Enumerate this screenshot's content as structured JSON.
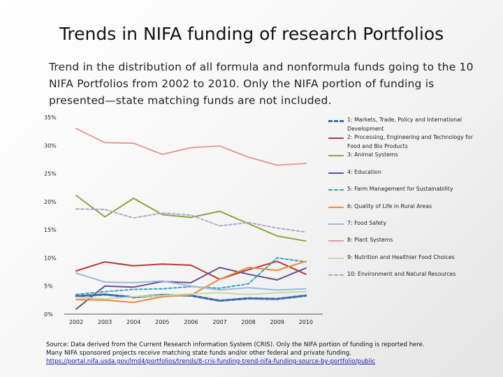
{
  "title": "Trends in NIFA funding of research Portfolios",
  "subtitle": "Trend in the distribution of all formula and nonformula funds going to the 10 NIFA Portfolios from 2002 to 2010.  Only the NIFA portion of funding is presented—state matching funds are not included.",
  "source": {
    "line1": "Source:  Data derived from the Current Research information System (CRIS).   Only the NIFA portion of funding is reported here.",
    "line2": "Many NIFA sponsored projects receive matching state funds and/or other federal and private funding.",
    "link": "https://portal.nifa.usda.gov/lmd4/portfolios/trends/8-cris-funding-trend-nifa-funding-source-by-portfolio/public"
  },
  "chart_data": {
    "type": "line",
    "title": "",
    "xlabel": "",
    "ylabel": "",
    "x": [
      "2002",
      "2003",
      "2004",
      "2005",
      "2006",
      "2007",
      "2008",
      "2009",
      "2010"
    ],
    "ylim": [
      0,
      35
    ],
    "yticks": [
      "0%",
      "5%",
      "10%",
      "15%",
      "20%",
      "25%",
      "30%",
      "35%"
    ],
    "grid": false,
    "legend_position": "right",
    "series": [
      {
        "name": "1: Markets, Trade, Policy and International Development",
        "color": "#3f6bb0",
        "style": "dashed-thick",
        "values": [
          3.2,
          3.5,
          3.0,
          3.4,
          3.3,
          2.4,
          2.8,
          2.7,
          3.3
        ]
      },
      {
        "name": "2: Processing, Engineering and Technology for Food and Bio Products",
        "color": "#b53b35",
        "style": "solid",
        "values": [
          7.7,
          9.3,
          8.6,
          8.9,
          8.7,
          6.2,
          7.9,
          9.4,
          7.1
        ]
      },
      {
        "name": "3: Animal Systems",
        "color": "#88a840",
        "style": "solid",
        "values": [
          21.1,
          17.3,
          20.6,
          17.7,
          17.2,
          18.3,
          16.1,
          13.9,
          13.0
        ]
      },
      {
        "name": "4: Education",
        "color": "#6a4f8c",
        "style": "solid",
        "values": [
          0.9,
          5.0,
          4.8,
          5.8,
          5.6,
          8.3,
          7.1,
          6.1,
          8.2
        ]
      },
      {
        "name": "5: Farm Management for Sustainability",
        "color": "#3ca0b8",
        "style": "dashed",
        "values": [
          3.5,
          4.0,
          4.4,
          4.5,
          4.9,
          4.6,
          5.4,
          10.0,
          9.3
        ]
      },
      {
        "name": "6: Quality of Life in Rural Areas",
        "color": "#e88a3a",
        "style": "solid",
        "values": [
          2.6,
          2.5,
          2.1,
          3.1,
          3.4,
          6.2,
          8.3,
          7.8,
          9.4
        ]
      },
      {
        "name": "7: Food Safety",
        "color": "#9db7dc",
        "style": "solid",
        "values": [
          7.3,
          5.7,
          5.6,
          5.9,
          5.0,
          4.3,
          4.7,
          4.3,
          4.5
        ]
      },
      {
        "name": "8: Plant Systems",
        "color": "#e59c98",
        "style": "solid",
        "values": [
          33.0,
          30.5,
          30.4,
          28.4,
          29.6,
          29.9,
          27.9,
          26.5,
          26.8
        ]
      },
      {
        "name": "9: Nutrition and Healthier Food Choices",
        "color": "#c6d9a4",
        "style": "solid",
        "values": [
          3.0,
          2.7,
          3.1,
          3.3,
          3.6,
          3.8,
          3.5,
          3.8,
          4.0
        ]
      },
      {
        "name": "10: Environment and Natural Resources",
        "color": "#b7a8cc",
        "style": "dashed",
        "values": [
          18.7,
          18.6,
          17.1,
          18.0,
          17.6,
          15.7,
          16.3,
          15.3,
          14.6
        ]
      }
    ]
  }
}
